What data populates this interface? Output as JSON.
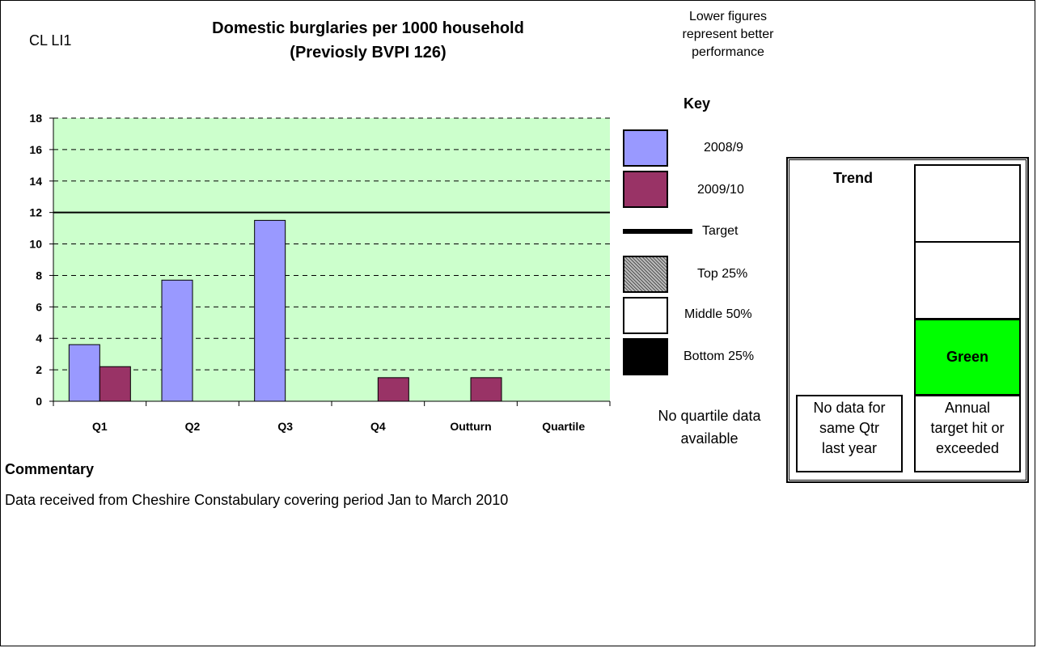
{
  "header": {
    "code": "CL LI1",
    "title_line1": "Domestic burglaries per 1000 household",
    "title_line2": "(Previosly BVPI 126)",
    "lower_note_line1": "Lower figures",
    "lower_note_line2": "represent better",
    "lower_note_line3": "performance"
  },
  "key": {
    "title": "Key",
    "items": [
      {
        "label": "2008/9",
        "color": "#9999ff"
      },
      {
        "label": "2009/10",
        "color": "#993366"
      },
      {
        "label": "Target",
        "color": "#000000"
      },
      {
        "label": "Top 25%",
        "color": "#999999"
      },
      {
        "label": "Middle 50%",
        "color": "#ffffff"
      },
      {
        "label": "Bottom 25%",
        "color": "#000000"
      }
    ]
  },
  "chart_data": {
    "type": "bar",
    "categories": [
      "Q1",
      "Q2",
      "Q3",
      "Q4",
      "Outturn",
      "Quartile"
    ],
    "series": [
      {
        "name": "2008/9",
        "color": "#9999ff",
        "values": [
          3.6,
          7.7,
          11.5,
          null,
          null,
          null
        ]
      },
      {
        "name": "2009/10",
        "color": "#993366",
        "values": [
          2.2,
          null,
          null,
          1.5,
          1.5,
          null
        ]
      }
    ],
    "target": 12,
    "ylim": [
      0,
      18
    ],
    "yticks": [
      0,
      2,
      4,
      6,
      8,
      10,
      12,
      14,
      16,
      18
    ],
    "plot_background": "#ccffcc",
    "grid": true,
    "grid_style": "dashed"
  },
  "quartile_note": {
    "line1": "No quartile data",
    "line2": "available"
  },
  "commentary": {
    "title": "Commentary",
    "text": "Data received from Cheshire Constabulary covering period Jan to March 2010"
  },
  "trend": {
    "label": "Trend",
    "status": "Green",
    "status_color": "#00ff00",
    "left_box": [
      "No data for",
      "same Qtr",
      "last year"
    ],
    "right_box": [
      "Annual",
      "target hit or",
      "exceeded"
    ]
  }
}
